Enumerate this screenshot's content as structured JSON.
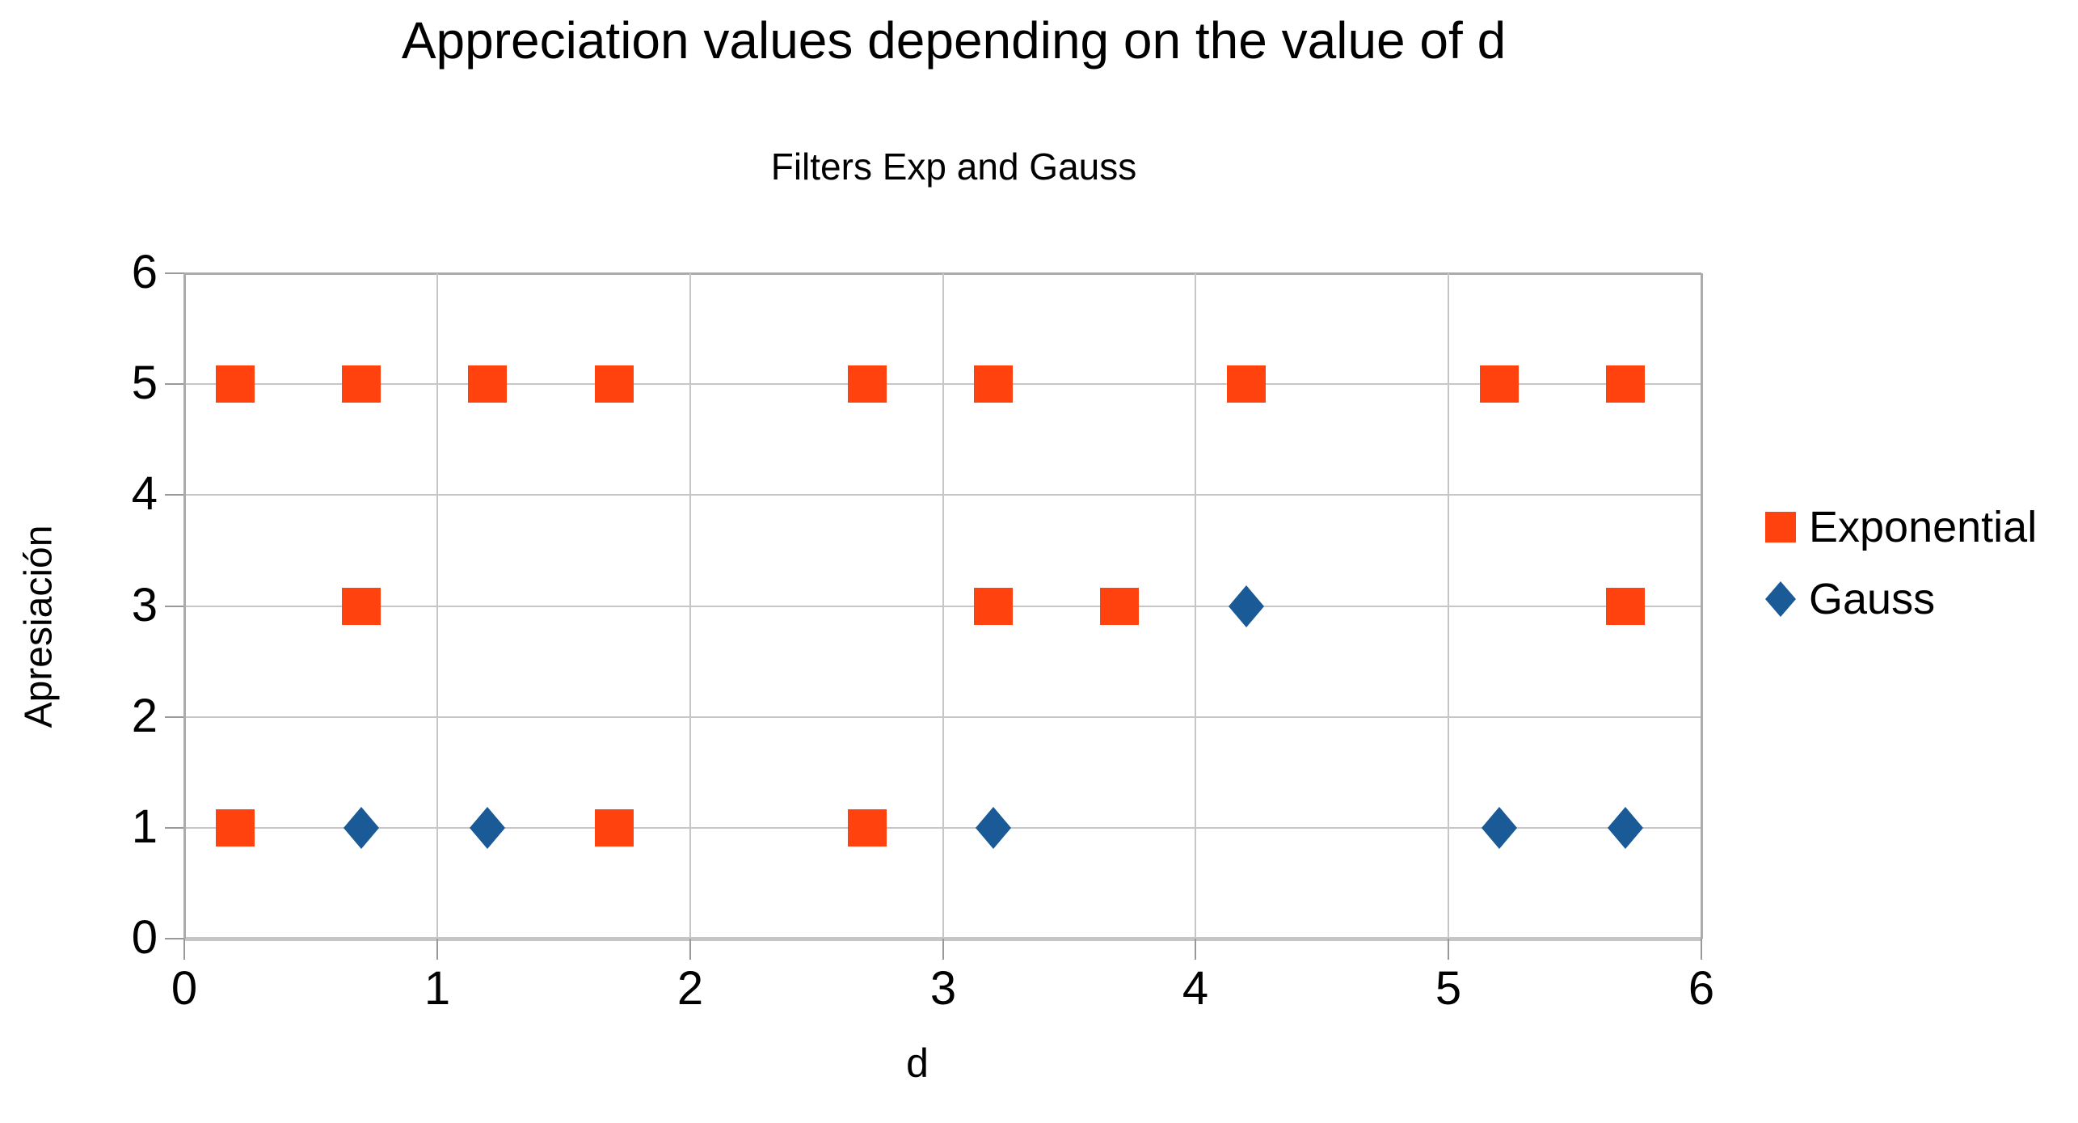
{
  "chart_data": {
    "type": "scatter",
    "title": "Appreciation values depending on the value of d",
    "subtitle": "Filters Exp and Gauss",
    "xlabel": "d",
    "ylabel": "Apresiación",
    "xlim": [
      0,
      6
    ],
    "ylim": [
      0,
      6
    ],
    "xticks": [
      0,
      1,
      2,
      3,
      4,
      5,
      6
    ],
    "yticks": [
      0,
      1,
      2,
      3,
      4,
      5,
      6
    ],
    "grid": true,
    "legend_position": "right",
    "colors": {
      "gridline": "#C6C6C6",
      "axis_border": "#ABABAB",
      "bottom_axis": "#C5C5C5",
      "tick": "#999999",
      "text": "#000000",
      "background": "#FFFFFF"
    },
    "series": [
      {
        "name": "Exponential",
        "marker": "square",
        "color": "#FF420E",
        "points": [
          [
            0.2,
            5
          ],
          [
            0.7,
            5
          ],
          [
            1.2,
            5
          ],
          [
            1.7,
            5
          ],
          [
            2.7,
            5
          ],
          [
            3.2,
            5
          ],
          [
            4.2,
            5
          ],
          [
            5.2,
            5
          ],
          [
            5.7,
            5
          ],
          [
            0.7,
            3
          ],
          [
            3.2,
            3
          ],
          [
            3.7,
            3
          ],
          [
            5.7,
            3
          ],
          [
            0.2,
            1
          ],
          [
            1.7,
            1
          ],
          [
            2.7,
            1
          ]
        ]
      },
      {
        "name": "Gauss",
        "marker": "diamond",
        "color": "#1A5A96",
        "points": [
          [
            4.2,
            3
          ],
          [
            0.7,
            1
          ],
          [
            1.2,
            1
          ],
          [
            3.2,
            1
          ],
          [
            5.2,
            1
          ],
          [
            5.7,
            1
          ]
        ]
      }
    ]
  }
}
